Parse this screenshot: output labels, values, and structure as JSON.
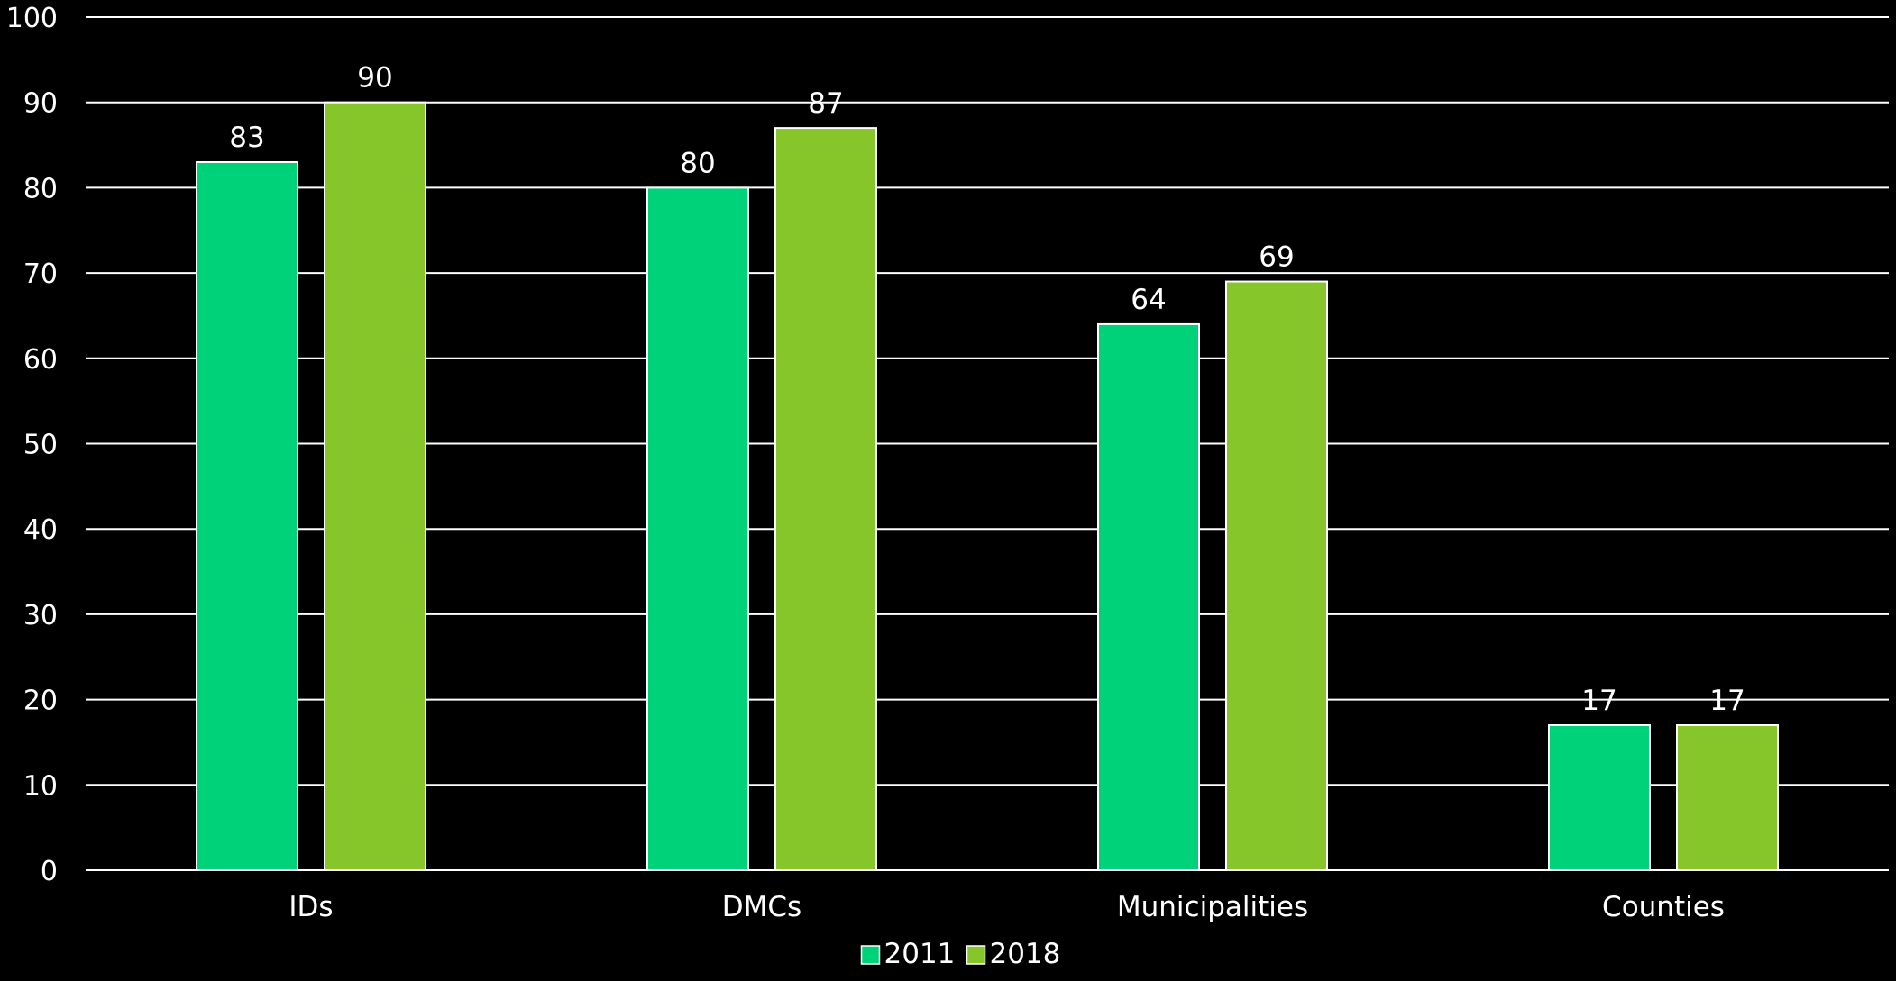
{
  "chart_data": {
    "type": "bar",
    "title": "",
    "xlabel": "",
    "ylabel": "",
    "categories": [
      "IDs",
      "DMCs",
      "Municipalities",
      "Counties"
    ],
    "series": [
      {
        "name": "2011",
        "values": [
          83,
          80,
          64,
          17
        ],
        "color": "#00D27A"
      },
      {
        "name": "2018",
        "values": [
          90,
          87,
          69,
          17
        ],
        "color": "#86C62A"
      }
    ],
    "ylim": [
      0,
      100
    ],
    "yticks": [
      0,
      10,
      20,
      30,
      40,
      50,
      60,
      70,
      80,
      90,
      100
    ],
    "grid": true,
    "gridColor": "#ffffff",
    "barStroke": "#ffffff",
    "background": "#000000",
    "legend": "bottom-center",
    "dataLabels": true
  }
}
